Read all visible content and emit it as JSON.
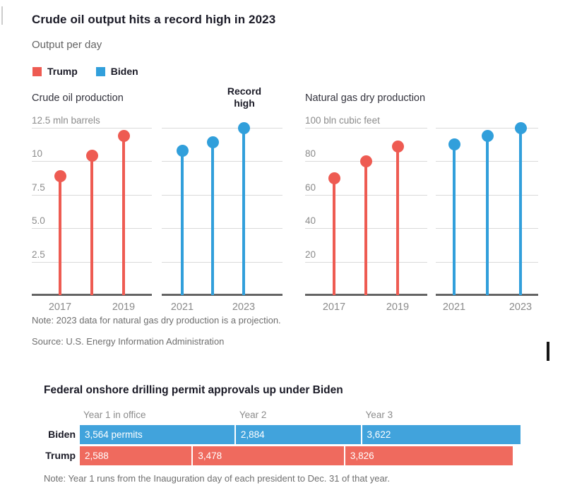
{
  "figure1": {
    "title": "Crude oil output hits a record high in 2023",
    "subtitle": "Output per day",
    "legend": [
      {
        "label": "Trump",
        "color": "#ee5b52"
      },
      {
        "label": "Biden",
        "color": "#319fdb"
      }
    ],
    "note": "Note: 2023 data for natural gas dry production is a projection.",
    "source": "Source: U.S. Energy Information Administration"
  },
  "figure2": {
    "title": "Federal onshore drilling permit approvals up under Biden",
    "note": "Note: Year 1 runs from the Inauguration day of each president to Dec. 31 of that year."
  },
  "chart_data": [
    {
      "type": "lollipop",
      "title": "Crude oil production",
      "unit_label": "12.5 mln barrels",
      "ylim": [
        0,
        12.5
      ],
      "grid": true,
      "gridlines": [
        12.5,
        10,
        7.5,
        5,
        2.5
      ],
      "gridline_labels": [
        "12.5 mln barrels",
        "10",
        "7.5",
        "5.0",
        "2.5"
      ],
      "visible_xticks": [
        "2017",
        "2019",
        "2021",
        "2023"
      ],
      "series": [
        {
          "name": "Trump",
          "color": "#ee5b52",
          "points": [
            {
              "year": "2017",
              "value": 8.9
            },
            {
              "year": "2018",
              "value": 10.4
            },
            {
              "year": "2019",
              "value": 11.9
            }
          ]
        },
        {
          "name": "Biden",
          "color": "#319fdb",
          "annotation": "Record high",
          "points": [
            {
              "year": "2021",
              "value": 10.8
            },
            {
              "year": "2022",
              "value": 11.4
            },
            {
              "year": "2023",
              "value": 12.5
            }
          ]
        }
      ]
    },
    {
      "type": "lollipop",
      "title": "Natural gas dry production",
      "unit_label": "100 bln cubic feet",
      "ylim": [
        0,
        100
      ],
      "grid": true,
      "gridlines": [
        100,
        80,
        60,
        40,
        20
      ],
      "gridline_labels": [
        "100 bln cubic feet",
        "80",
        "60",
        "40",
        "20"
      ],
      "visible_xticks": [
        "2017",
        "2019",
        "2021",
        "2023"
      ],
      "series": [
        {
          "name": "Trump",
          "color": "#ee5b52",
          "points": [
            {
              "year": "2017",
              "value": 70
            },
            {
              "year": "2018",
              "value": 80
            },
            {
              "year": "2019",
              "value": 89
            }
          ]
        },
        {
          "name": "Biden",
          "color": "#319fdb",
          "points": [
            {
              "year": "2021",
              "value": 90
            },
            {
              "year": "2022",
              "value": 95
            },
            {
              "year": "2023",
              "value": 100
            }
          ]
        }
      ]
    },
    {
      "type": "bar",
      "title": "Federal onshore drilling permit approvals up under Biden",
      "column_headers": [
        "Year 1 in office",
        "Year 2",
        "Year 3"
      ],
      "rows": [
        {
          "label": "Biden",
          "color": "#41a3dc",
          "values": [
            3564,
            2884,
            3622
          ],
          "display": [
            "3,564 permits",
            "2,884",
            "3,622"
          ]
        },
        {
          "label": "Trump",
          "color": "#ef6a5e",
          "values": [
            2588,
            3478,
            3826
          ],
          "display": [
            "2,588",
            "3,478",
            "3,826"
          ]
        }
      ],
      "note": "Note: Year 1 runs from the Inauguration day of each president to Dec. 31 of that year."
    }
  ],
  "colors": {
    "trump_red": "#ee5b52",
    "biden_blue": "#319fdb",
    "bar_red": "#ef6a5e",
    "bar_blue": "#41a3dc",
    "title_text": "#1a1a26",
    "axis_text": "#8b8b8b",
    "note_text": "#6e6e6e",
    "gridline": "#d9d9d9",
    "baseline": "#646464"
  }
}
